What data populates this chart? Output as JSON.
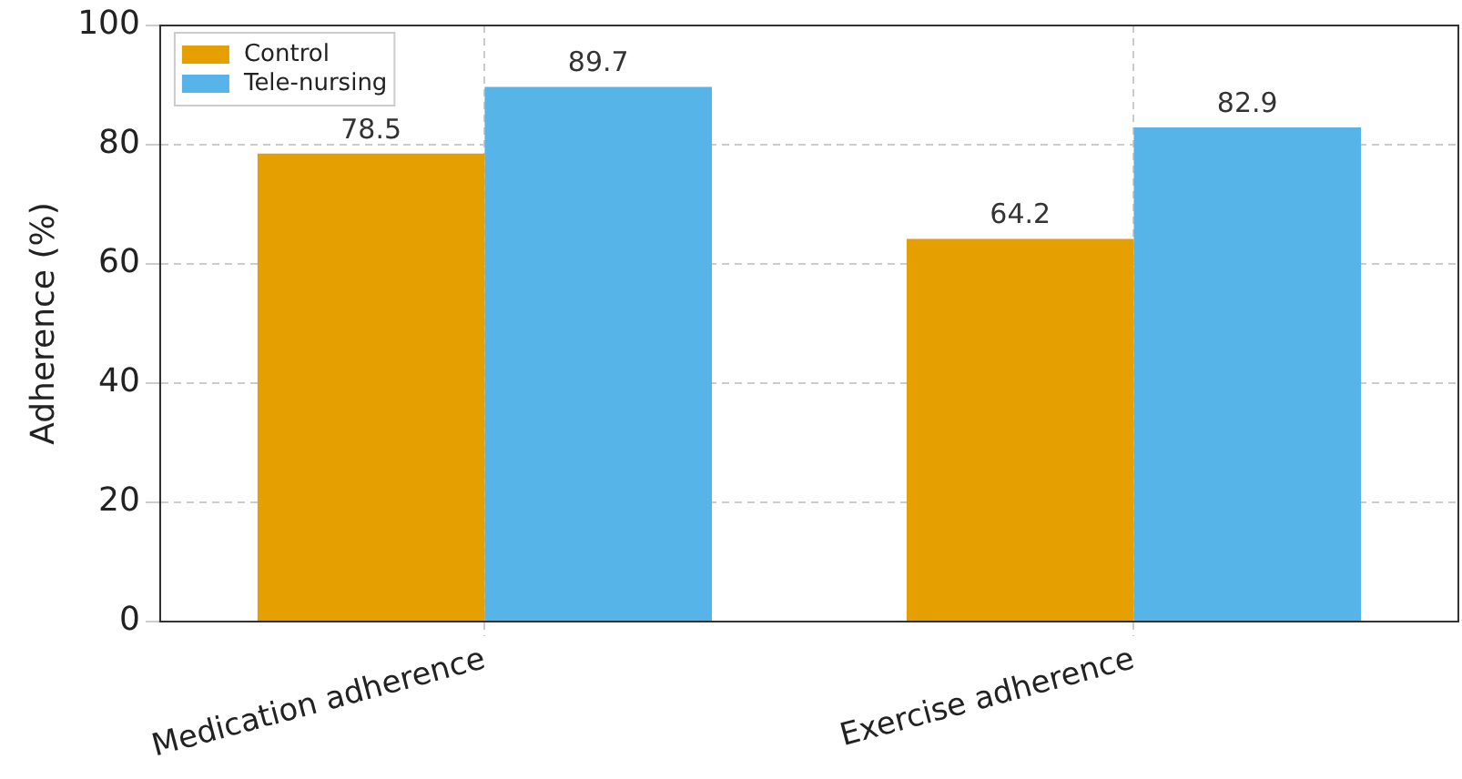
{
  "chart_data": {
    "type": "bar",
    "ylabel": "Adherence (%)",
    "categories": [
      "Medication adherence",
      "Exercise adherence"
    ],
    "series": [
      {
        "name": "Control",
        "color": "#e69f00",
        "values": [
          78.5,
          64.2
        ]
      },
      {
        "name": "Tele-nursing",
        "color": "#56b4e9",
        "values": [
          89.7,
          82.9
        ]
      }
    ],
    "ylim": [
      0,
      100
    ],
    "yticks": [
      0,
      20,
      40,
      60,
      80,
      100
    ],
    "grid": true,
    "legend": "top left",
    "data_labels": true
  }
}
